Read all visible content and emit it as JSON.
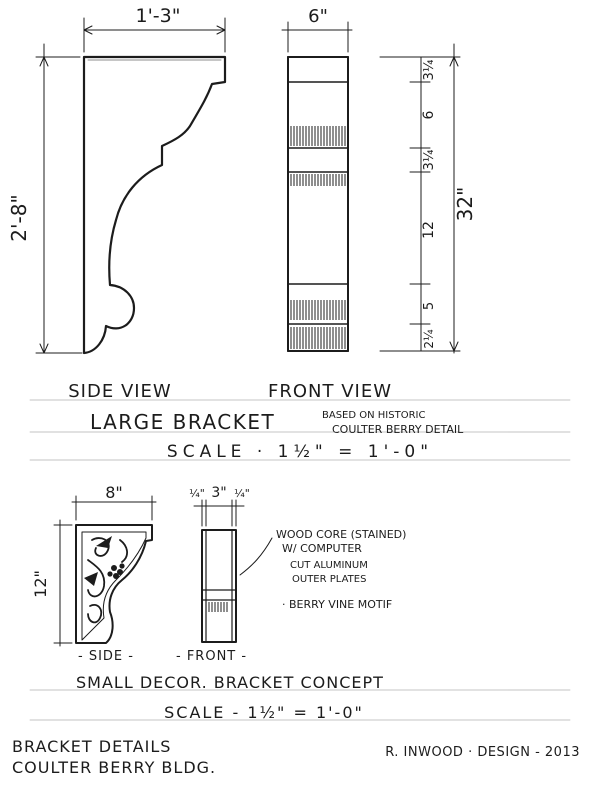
{
  "large_bracket": {
    "side_width_dim": "1'-3\"",
    "side_height_dim": "2'-8\"",
    "front_width_dim": "6\"",
    "front_segments": [
      "3¼",
      "6",
      "3¼",
      "12",
      "5",
      "2¼"
    ],
    "front_total_dim": "32\"",
    "side_view_label": "SIDE VIEW",
    "front_view_label": "FRONT VIEW",
    "title": "LARGE BRACKET",
    "note_line1": "BASED ON HISTORIC",
    "note_line2": "COULTER BERRY DETAIL",
    "scale": "SCALE · 1½\" = 1'-0\""
  },
  "small_bracket": {
    "side_width_dim": "8\"",
    "side_height_dim": "12\"",
    "front_dims": [
      "¼\"",
      "3\"",
      "¼\""
    ],
    "note_lines": [
      "WOOD CORE (STAINED)",
      "W/ COMPUTER",
      "CUT ALUMINUM",
      "OUTER PLATES"
    ],
    "motif_note": "· BERRY VINE MOTIF",
    "side_label": "- SIDE -",
    "front_label": "- FRONT -",
    "title": "SMALL DECOR. BRACKET CONCEPT",
    "scale": "SCALE - 1½\" = 1'-0\""
  },
  "footer": {
    "title_line1": "BRACKET DETAILS",
    "title_line2": "COULTER BERRY BLDG.",
    "designer": "R. INWOOD · DESIGN - 2013"
  }
}
